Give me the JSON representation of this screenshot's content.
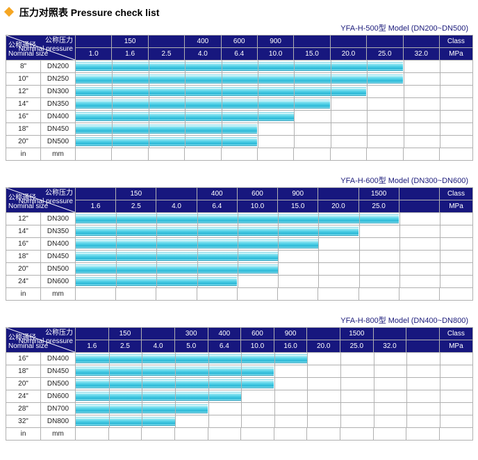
{
  "title": "压力对照表 Pressure check list",
  "diamond_color": "#f5a623",
  "header_bg": "#17177e",
  "header_text": "#ffffff",
  "border_color": "#b0b0b0",
  "bar_gradient": [
    "#ffffff",
    "#8fe6f2",
    "#4fcfe6",
    "#2bb7d6",
    "#8fe6f2"
  ],
  "labels": {
    "nominal_pressure_cn": "公称压力",
    "nominal_pressure_en": "Nominal pressure",
    "nominal_size_cn": "公称通径",
    "nominal_size_en": "Nominal size",
    "class": "Class",
    "mpa": "MPa",
    "in": "in",
    "mm": "mm"
  },
  "charts": [
    {
      "model": "YFA-H-500型  Model (DN200~DN500)",
      "class_ticks": [
        "",
        "150",
        "",
        "400",
        "600",
        "900",
        "",
        "",
        "",
        ""
      ],
      "mpa_ticks": [
        "1.0",
        "1.6",
        "2.5",
        "4.0",
        "6.4",
        "10.0",
        "15.0",
        "20.0",
        "25.0",
        "32.0"
      ],
      "num_cols": 10,
      "rows": [
        {
          "in": "8\"",
          "mm": "DN200",
          "span": 9
        },
        {
          "in": "10\"",
          "mm": "DN250",
          "span": 9
        },
        {
          "in": "12\"",
          "mm": "DN300",
          "span": 8
        },
        {
          "in": "14\"",
          "mm": "DN350",
          "span": 7
        },
        {
          "in": "16\"",
          "mm": "DN400",
          "span": 6
        },
        {
          "in": "18\"",
          "mm": "DN450",
          "span": 5
        },
        {
          "in": "20\"",
          "mm": "DN500",
          "span": 5
        }
      ]
    },
    {
      "model": "YFA-H-600型  Model (DN300~DN600)",
      "class_ticks": [
        "",
        "150",
        "",
        "400",
        "600",
        "900",
        "",
        "1500",
        ""
      ],
      "mpa_ticks": [
        "1.6",
        "2.5",
        "4.0",
        "6.4",
        "10.0",
        "15.0",
        "20.0",
        "25.0",
        ""
      ],
      "num_cols": 9,
      "rows": [
        {
          "in": "12\"",
          "mm": "DN300",
          "span": 8
        },
        {
          "in": "14\"",
          "mm": "DN350",
          "span": 7
        },
        {
          "in": "16\"",
          "mm": "DN400",
          "span": 6
        },
        {
          "in": "18\"",
          "mm": "DN450",
          "span": 5
        },
        {
          "in": "20\"",
          "mm": "DN500",
          "span": 5
        },
        {
          "in": "24\"",
          "mm": "DN600",
          "span": 4
        }
      ]
    },
    {
      "model": "YFA-H-800型  Model (DN400~DN800)",
      "class_ticks": [
        "",
        "150",
        "",
        "300",
        "400",
        "600",
        "900",
        "",
        "1500",
        "",
        ""
      ],
      "mpa_ticks": [
        "1.6",
        "2.5",
        "4.0",
        "5.0",
        "6.4",
        "10.0",
        "16.0",
        "20.0",
        "25.0",
        "32.0",
        ""
      ],
      "num_cols": 11,
      "rows": [
        {
          "in": "16\"",
          "mm": "DN400",
          "span": 7
        },
        {
          "in": "18\"",
          "mm": "DN450",
          "span": 6
        },
        {
          "in": "20\"",
          "mm": "DN500",
          "span": 6
        },
        {
          "in": "24\"",
          "mm": "DN600",
          "span": 5
        },
        {
          "in": "28\"",
          "mm": "DN700",
          "span": 4
        },
        {
          "in": "32\"",
          "mm": "DN800",
          "span": 3
        }
      ]
    }
  ]
}
